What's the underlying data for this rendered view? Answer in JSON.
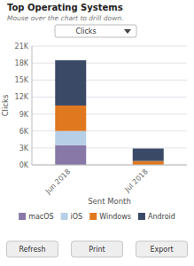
{
  "chart_data": {
    "type": "bar",
    "stacked": true,
    "title": "Top Operating Systems",
    "subtitle": "Mouse over the chart to drill down.",
    "dropdown": "Clicks",
    "buttons": [
      "Refresh",
      "Print",
      "Export"
    ],
    "x_label": "Sent Month",
    "y_label": "Clicks",
    "categories": [
      "Jun 2018",
      "Jul 2018"
    ],
    "series": [
      {
        "name": "macOS",
        "color": "#8878a8",
        "values": [
          3500,
          0
        ]
      },
      {
        "name": "iOS",
        "color": "#b8cfe8",
        "values": [
          2500,
          0
        ]
      },
      {
        "name": "Windows",
        "color": "#e07820",
        "values": [
          4500,
          700
        ]
      },
      {
        "name": "Android",
        "color": "#3a4a66",
        "values": [
          8000,
          2200
        ]
      }
    ],
    "ylim": [
      0,
      21000
    ],
    "yticks": [
      {
        "value": 0,
        "label": "0K"
      },
      {
        "value": 3000,
        "label": "3K"
      },
      {
        "value": 6000,
        "label": "6K"
      },
      {
        "value": 9000,
        "label": "9K"
      },
      {
        "value": 12000,
        "label": "12K"
      },
      {
        "value": 15000,
        "label": "15K"
      },
      {
        "value": 18000,
        "label": "18K"
      },
      {
        "value": 21000,
        "label": "21K"
      }
    ],
    "grid": true,
    "legend": "bottom"
  }
}
